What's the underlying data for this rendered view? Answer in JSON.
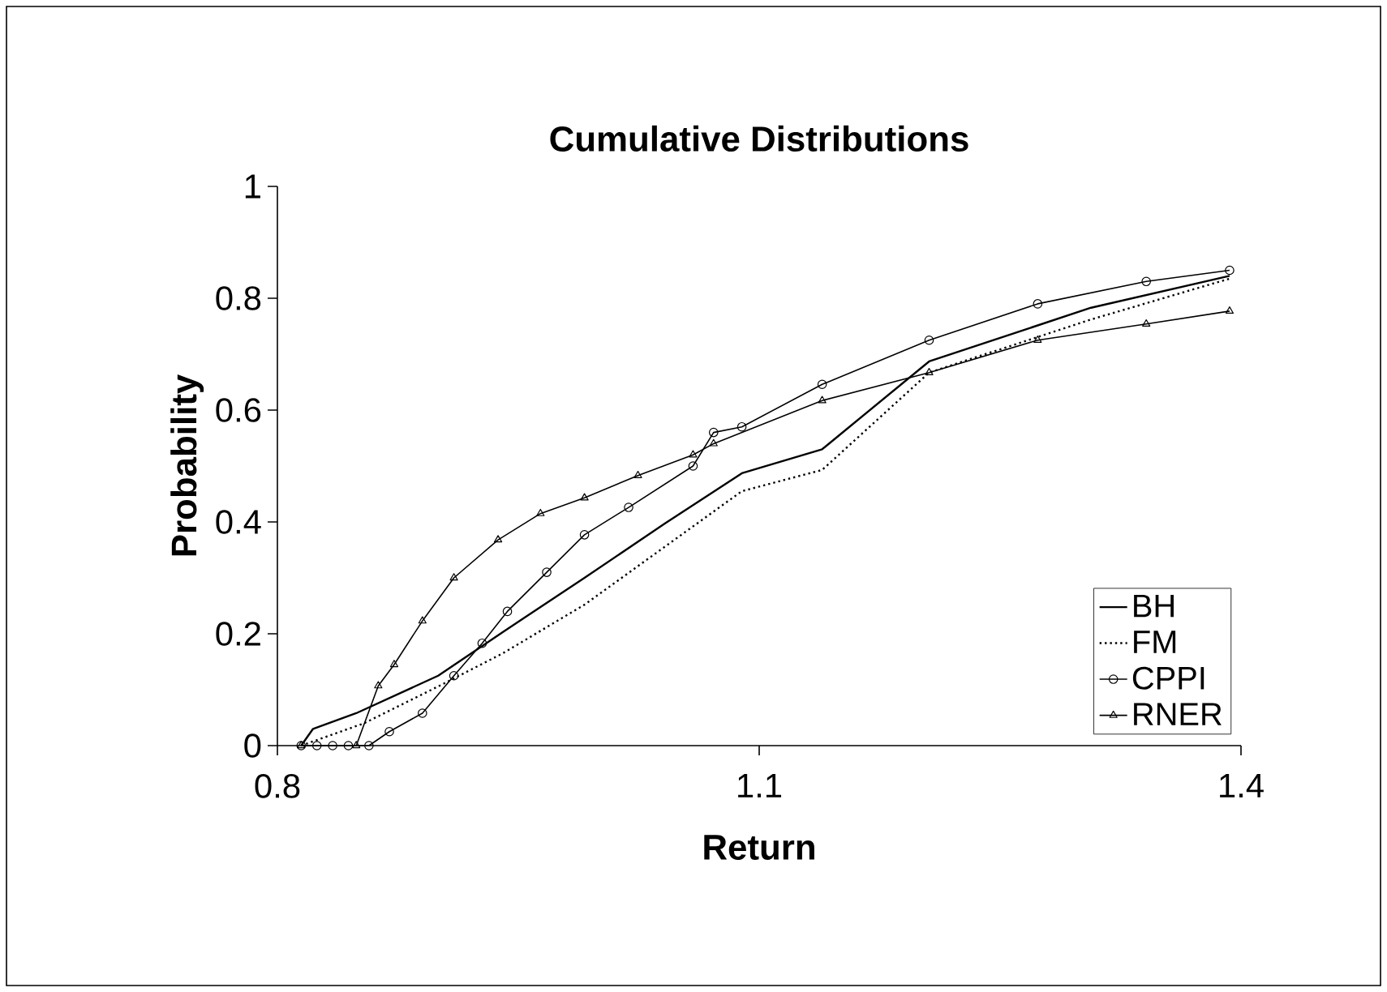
{
  "chart_data": {
    "type": "line",
    "title": "Cumulative Distributions",
    "xlabel": "Return",
    "ylabel": "Probability",
    "xlim": [
      0.8,
      1.4
    ],
    "ylim": [
      0,
      1
    ],
    "xticks": [
      0.8,
      1.1,
      1.4
    ],
    "yticks": [
      0,
      0.2,
      0.4,
      0.6,
      0.8,
      1
    ],
    "legend": "bottom right",
    "grid": false,
    "series": [
      {
        "name": "BH",
        "color": "#000000",
        "line_style": "solid",
        "marker": "none",
        "x": [
          0.8148,
          0.8222,
          0.8491,
          0.9001,
          0.9403,
          0.9912,
          1.0412,
          1.0892,
          1.1392,
          1.2058,
          1.3066,
          1.3929
        ],
        "values": [
          0,
          0.03,
          0.058,
          0.125,
          0.203,
          0.3,
          0.397,
          0.487,
          0.53,
          0.687,
          0.783,
          0.84
        ]
      },
      {
        "name": "FM",
        "color": "#000000",
        "line_style": "dotted",
        "marker": "none",
        "x": [
          0.8148,
          0.854,
          0.903,
          0.9403,
          0.9912,
          1.0892,
          1.1392,
          1.2058,
          1.3066,
          1.3929
        ],
        "values": [
          0,
          0.04,
          0.11,
          0.165,
          0.252,
          0.455,
          0.493,
          0.667,
          0.762,
          0.835
        ]
      },
      {
        "name": "CPPI",
        "color": "#000000",
        "line_style": "solid",
        "marker": "circle",
        "x": [
          0.8148,
          0.8246,
          0.8344,
          0.8442,
          0.857,
          0.8697,
          0.8903,
          0.9099,
          0.9275,
          0.9432,
          0.9677,
          0.9912,
          1.0187,
          1.0588,
          1.0716,
          1.0892,
          1.1392,
          1.2058,
          1.2734,
          1.341,
          1.3929
        ],
        "values": [
          0,
          0,
          0,
          0,
          0,
          0.025,
          0.058,
          0.125,
          0.183,
          0.24,
          0.31,
          0.377,
          0.426,
          0.5,
          0.56,
          0.57,
          0.646,
          0.725,
          0.79,
          0.83,
          0.85
        ]
      },
      {
        "name": "RNER",
        "color": "#000000",
        "line_style": "solid",
        "marker": "triangle",
        "x": [
          0.8148,
          0.8491,
          0.8628,
          0.8727,
          0.8903,
          0.9099,
          0.9374,
          0.9638,
          0.9912,
          1.0245,
          1.0588,
          1.0716,
          1.1392,
          1.2058,
          1.2734,
          1.341,
          1.3929
        ],
        "values": [
          0,
          0,
          0.107,
          0.145,
          0.223,
          0.3,
          0.368,
          0.415,
          0.443,
          0.483,
          0.52,
          0.54,
          0.617,
          0.667,
          0.725,
          0.754,
          0.777
        ]
      }
    ]
  }
}
